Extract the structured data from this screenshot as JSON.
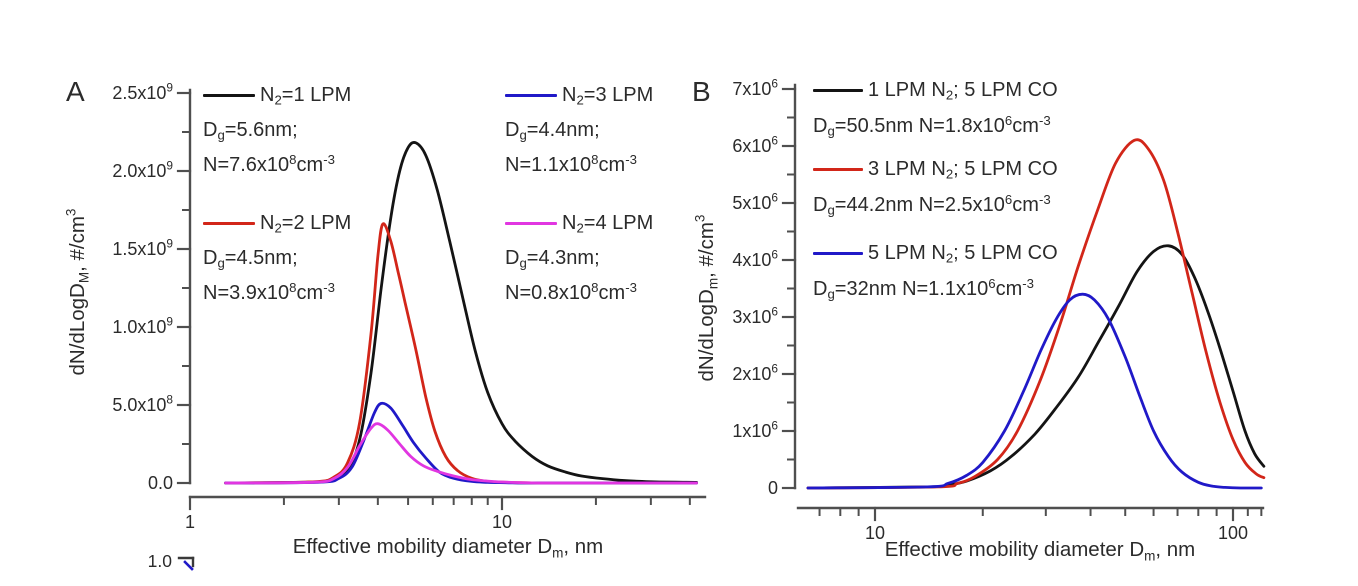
{
  "figure": {
    "background": "#ffffff",
    "text_color": "#2b2b2b",
    "axis_color": "#4f4f4f",
    "partial_panel": {
      "tick_label": "1.0"
    }
  },
  "chart_data": [
    {
      "id": "A",
      "type": "line",
      "panel_label": "A",
      "x_scale": "log",
      "xlim": [
        1,
        45
      ],
      "ylim": [
        0,
        2500000000.0
      ],
      "xlabel": "Effective mobility diameter D~m~, nm",
      "ylabel": "dN/dLogD~M~, #/cm^3^",
      "grid": false,
      "legend_position": "two columns, top of plot area",
      "x_ticks": [
        {
          "v": 1,
          "label": "1"
        },
        {
          "v": 10,
          "label": "10"
        }
      ],
      "x_minor_ticks": [
        2,
        3,
        4,
        5,
        6,
        7,
        8,
        9,
        20,
        30,
        40
      ],
      "y_ticks": [
        {
          "v": 0,
          "label": "0.0"
        },
        {
          "v": 500000000.0,
          "label": "5.0x10^8^"
        },
        {
          "v": 1000000000.0,
          "label": "1.0x10^9^"
        },
        {
          "v": 1500000000.0,
          "label": "1.5x10^9^"
        },
        {
          "v": 2000000000.0,
          "label": "2.0x10^9^"
        },
        {
          "v": 2500000000.0,
          "label": "2.5x10^9^"
        }
      ],
      "y_minor_ticks": [
        250000000.0,
        750000000.0,
        1250000000.0,
        1750000000.0,
        2250000000.0
      ],
      "series": [
        {
          "name": "N2=1 LPM",
          "legend_title": "N~2~=1 LPM",
          "legend_lines": [
            "D~g~=5.6nm;",
            "N=7.6x10^8^cm^-3^"
          ],
          "color": "#141414",
          "points": [
            [
              1.3,
              0
            ],
            [
              2.4,
              5000000.0
            ],
            [
              2.8,
              20000000.0
            ],
            [
              3.2,
              90000000.0
            ],
            [
              3.5,
              280000000.0
            ],
            [
              3.8,
              700000000.0
            ],
            [
              4.1,
              1250000000.0
            ],
            [
              4.4,
              1700000000.0
            ],
            [
              4.7,
              2000000000.0
            ],
            [
              5.0,
              2150000000.0
            ],
            [
              5.3,
              2180000000.0
            ],
            [
              5.7,
              2100000000.0
            ],
            [
              6.2,
              1880000000.0
            ],
            [
              6.8,
              1550000000.0
            ],
            [
              7.5,
              1180000000.0
            ],
            [
              8.2,
              850000000.0
            ],
            [
              9,
              580000000.0
            ],
            [
              10,
              380000000.0
            ],
            [
              11,
              270000000.0
            ],
            [
              12.5,
              170000000.0
            ],
            [
              14,
              110000000.0
            ],
            [
              16,
              70000000.0
            ],
            [
              18,
              45000000.0
            ],
            [
              21,
              28000000.0
            ],
            [
              25,
              15000000.0
            ],
            [
              30,
              8000000.0
            ],
            [
              36,
              5000000.0
            ],
            [
              42,
              4000000.0
            ]
          ]
        },
        {
          "name": "N2=2 LPM",
          "legend_title": "N~2~=2 LPM",
          "legend_lines": [
            "D~g~=4.5nm;",
            "N=3.9x10^8^cm^-3^"
          ],
          "color": "#d22619",
          "points": [
            [
              1.3,
              0
            ],
            [
              2.5,
              8000000.0
            ],
            [
              2.9,
              40000000.0
            ],
            [
              3.2,
              130000000.0
            ],
            [
              3.5,
              390000000.0
            ],
            [
              3.8,
              950000000.0
            ],
            [
              4.0,
              1450000000.0
            ],
            [
              4.15,
              1660000000.0
            ],
            [
              4.4,
              1550000000.0
            ],
            [
              4.65,
              1350000000.0
            ],
            [
              4.9,
              1150000000.0
            ],
            [
              5.3,
              850000000.0
            ],
            [
              5.7,
              550000000.0
            ],
            [
              6.1,
              330000000.0
            ],
            [
              6.6,
              170000000.0
            ],
            [
              7.2,
              80000000.0
            ],
            [
              8,
              30000000.0
            ],
            [
              9,
              10000000.0
            ],
            [
              10,
              5000000.0
            ],
            [
              12,
              1000000.0
            ],
            [
              15,
              0
            ],
            [
              20,
              0
            ],
            [
              30,
              0
            ],
            [
              42,
              0
            ]
          ]
        },
        {
          "name": "N2=3 LPM",
          "legend_title": "N~2~=3 LPM",
          "legend_lines": [
            "D~g~=4.4nm;",
            "N=1.1x10^8^cm^-3^"
          ],
          "color": "#2019c8",
          "points": [
            [
              1.3,
              0
            ],
            [
              2.6,
              5000000.0
            ],
            [
              3.0,
              30000000.0
            ],
            [
              3.3,
              100000000.0
            ],
            [
              3.6,
              270000000.0
            ],
            [
              3.9,
              450000000.0
            ],
            [
              4.1,
              510000000.0
            ],
            [
              4.4,
              480000000.0
            ],
            [
              4.8,
              370000000.0
            ],
            [
              5.2,
              260000000.0
            ],
            [
              5.7,
              160000000.0
            ],
            [
              6.3,
              70000000.0
            ],
            [
              7,
              30000000.0
            ],
            [
              8,
              10000000.0
            ],
            [
              9,
              4000000.0
            ],
            [
              10.5,
              1000000.0
            ],
            [
              12,
              0
            ],
            [
              20,
              0
            ],
            [
              30,
              0
            ],
            [
              42,
              0
            ]
          ]
        },
        {
          "name": "N2=4 LPM",
          "legend_title": "N~2~=4 LPM",
          "legend_lines": [
            "D~g~=4.3nm;",
            "N=0.8x10^8^cm^-3^"
          ],
          "color": "#e136e1",
          "points": [
            [
              1.3,
              0
            ],
            [
              2.5,
              5000000.0
            ],
            [
              2.9,
              30000000.0
            ],
            [
              3.2,
              100000000.0
            ],
            [
              3.5,
              240000000.0
            ],
            [
              3.8,
              350000000.0
            ],
            [
              4.0,
              380000000.0
            ],
            [
              4.3,
              340000000.0
            ],
            [
              4.7,
              250000000.0
            ],
            [
              5.1,
              170000000.0
            ],
            [
              5.6,
              110000000.0
            ],
            [
              6.2,
              75000000.0
            ],
            [
              7,
              45000000.0
            ],
            [
              8,
              22000000.0
            ],
            [
              9.5,
              9000000.0
            ],
            [
              11,
              3000000.0
            ],
            [
              13,
              0
            ],
            [
              20,
              0
            ],
            [
              30,
              0
            ],
            [
              42,
              0
            ]
          ]
        }
      ]
    },
    {
      "id": "B",
      "type": "line",
      "panel_label": "B",
      "x_scale": "log",
      "xlim": [
        6,
        122
      ],
      "ylim": [
        0,
        7000000.0
      ],
      "xlabel": "Effective mobility diameter D~m~, nm",
      "ylabel": "dN/dLogD~m~, #/cm^3^",
      "grid": false,
      "legend_position": "single column, top-left of plot area",
      "x_ticks": [
        {
          "v": 10,
          "label": "10"
        },
        {
          "v": 100,
          "label": "100"
        }
      ],
      "x_minor_ticks": [
        7,
        8,
        9,
        20,
        30,
        40,
        50,
        60,
        70,
        80,
        90,
        110,
        120
      ],
      "y_ticks": [
        {
          "v": 0,
          "label": "0"
        },
        {
          "v": 1000000.0,
          "label": "1x10^6^"
        },
        {
          "v": 2000000.0,
          "label": "2x10^6^"
        },
        {
          "v": 3000000.0,
          "label": "3x10^6^"
        },
        {
          "v": 4000000.0,
          "label": "4x10^6^"
        },
        {
          "v": 5000000.0,
          "label": "5x10^6^"
        },
        {
          "v": 6000000.0,
          "label": "6x10^6^"
        },
        {
          "v": 7000000.0,
          "label": "7x10^6^"
        }
      ],
      "y_minor_ticks": [
        500000.0,
        1500000.0,
        2500000.0,
        3500000.0,
        4500000.0,
        5500000.0,
        6500000.0
      ],
      "series": [
        {
          "name": "1 LPM N2; 5 LPM CO",
          "legend_title": "1 LPM N~2~; 5 LPM CO",
          "legend_lines": [
            "D~g~=50.5nm N=1.8x10^6^cm^-3^"
          ],
          "color": "#141414",
          "points": [
            [
              6.5,
              0
            ],
            [
              14,
              20000.0
            ],
            [
              16,
              50000.0
            ],
            [
              18,
              120000.0
            ],
            [
              21,
              300000.0
            ],
            [
              24,
              550000.0
            ],
            [
              28,
              950000.0
            ],
            [
              32,
              1400000.0
            ],
            [
              37,
              1950000.0
            ],
            [
              42,
              2550000.0
            ],
            [
              48,
              3200000.0
            ],
            [
              54,
              3800000.0
            ],
            [
              60,
              4150000.0
            ],
            [
              66,
              4250000.0
            ],
            [
              72,
              4100000.0
            ],
            [
              78,
              3700000.0
            ],
            [
              85,
              3100000.0
            ],
            [
              92,
              2450000.0
            ],
            [
              100,
              1700000.0
            ],
            [
              108,
              1000000.0
            ],
            [
              115,
              600000.0
            ],
            [
              122,
              380000.0
            ]
          ]
        },
        {
          "name": "3 LPM N2; 5 LPM CO",
          "legend_title": "3 LPM N~2~; 5 LPM CO",
          "legend_lines": [
            "D~g~=44.2nm N=2.5x10^6^cm^-3^"
          ],
          "color": "#d22619",
          "points": [
            [
              6.5,
              0
            ],
            [
              15,
              20000.0
            ],
            [
              17,
              80000.0
            ],
            [
              19,
              200000.0
            ],
            [
              22,
              500000.0
            ],
            [
              25,
              1000000.0
            ],
            [
              29,
              1900000.0
            ],
            [
              33,
              2900000.0
            ],
            [
              37,
              3900000.0
            ],
            [
              42,
              4900000.0
            ],
            [
              47,
              5700000.0
            ],
            [
              53,
              6100000.0
            ],
            [
              58,
              5950000.0
            ],
            [
              64,
              5400000.0
            ],
            [
              70,
              4500000.0
            ],
            [
              77,
              3400000.0
            ],
            [
              84,
              2400000.0
            ],
            [
              92,
              1500000.0
            ],
            [
              100,
              850000.0
            ],
            [
              108,
              450000.0
            ],
            [
              116,
              250000.0
            ],
            [
              122,
              180000.0
            ]
          ]
        },
        {
          "name": "5 LPM N2; 5 LPM CO",
          "legend_title": "5 LPM N~2~; 5 LPM CO",
          "legend_lines": [
            "D~g~=32nm N=1.1x10^6^cm^-3^"
          ],
          "color": "#2019c8",
          "points": [
            [
              6.5,
              0
            ],
            [
              14,
              20000.0
            ],
            [
              16,
              80000.0
            ],
            [
              18,
              220000.0
            ],
            [
              20,
              450000.0
            ],
            [
              23,
              1000000.0
            ],
            [
              26,
              1700000.0
            ],
            [
              29,
              2400000.0
            ],
            [
              32,
              2950000.0
            ],
            [
              35,
              3300000.0
            ],
            [
              38,
              3400000.0
            ],
            [
              41,
              3300000.0
            ],
            [
              45,
              2950000.0
            ],
            [
              50,
              2300000.0
            ],
            [
              55,
              1600000.0
            ],
            [
              60,
              1000000.0
            ],
            [
              66,
              550000.0
            ],
            [
              72,
              280000.0
            ],
            [
              80,
              100000.0
            ],
            [
              88,
              30000.0
            ],
            [
              95,
              10000.0
            ],
            [
              105,
              0
            ],
            [
              120,
              0
            ]
          ]
        }
      ]
    }
  ]
}
